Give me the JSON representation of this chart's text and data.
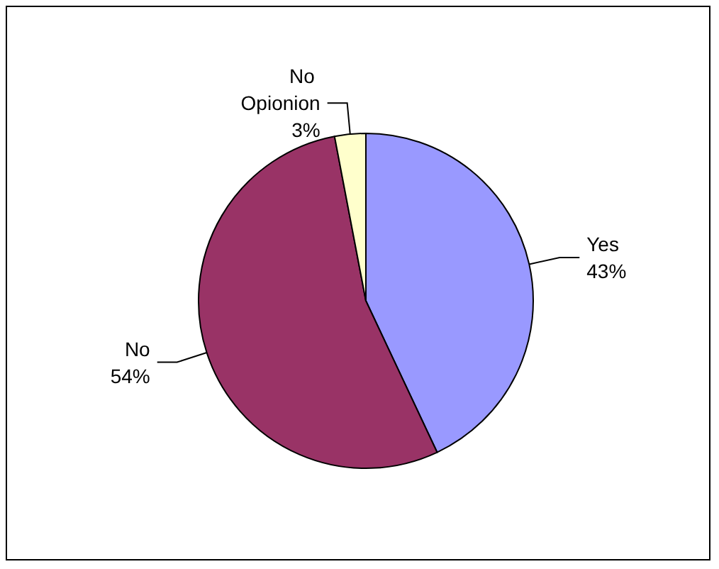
{
  "chart_data": {
    "type": "pie",
    "categories": [
      "Yes",
      "No",
      "No Opionion"
    ],
    "values": [
      43,
      54,
      3
    ],
    "colors": [
      "#9999ff",
      "#993366",
      "#ffffcc"
    ],
    "value_labels": [
      "43%",
      "54%",
      "3%"
    ],
    "legend": false
  }
}
